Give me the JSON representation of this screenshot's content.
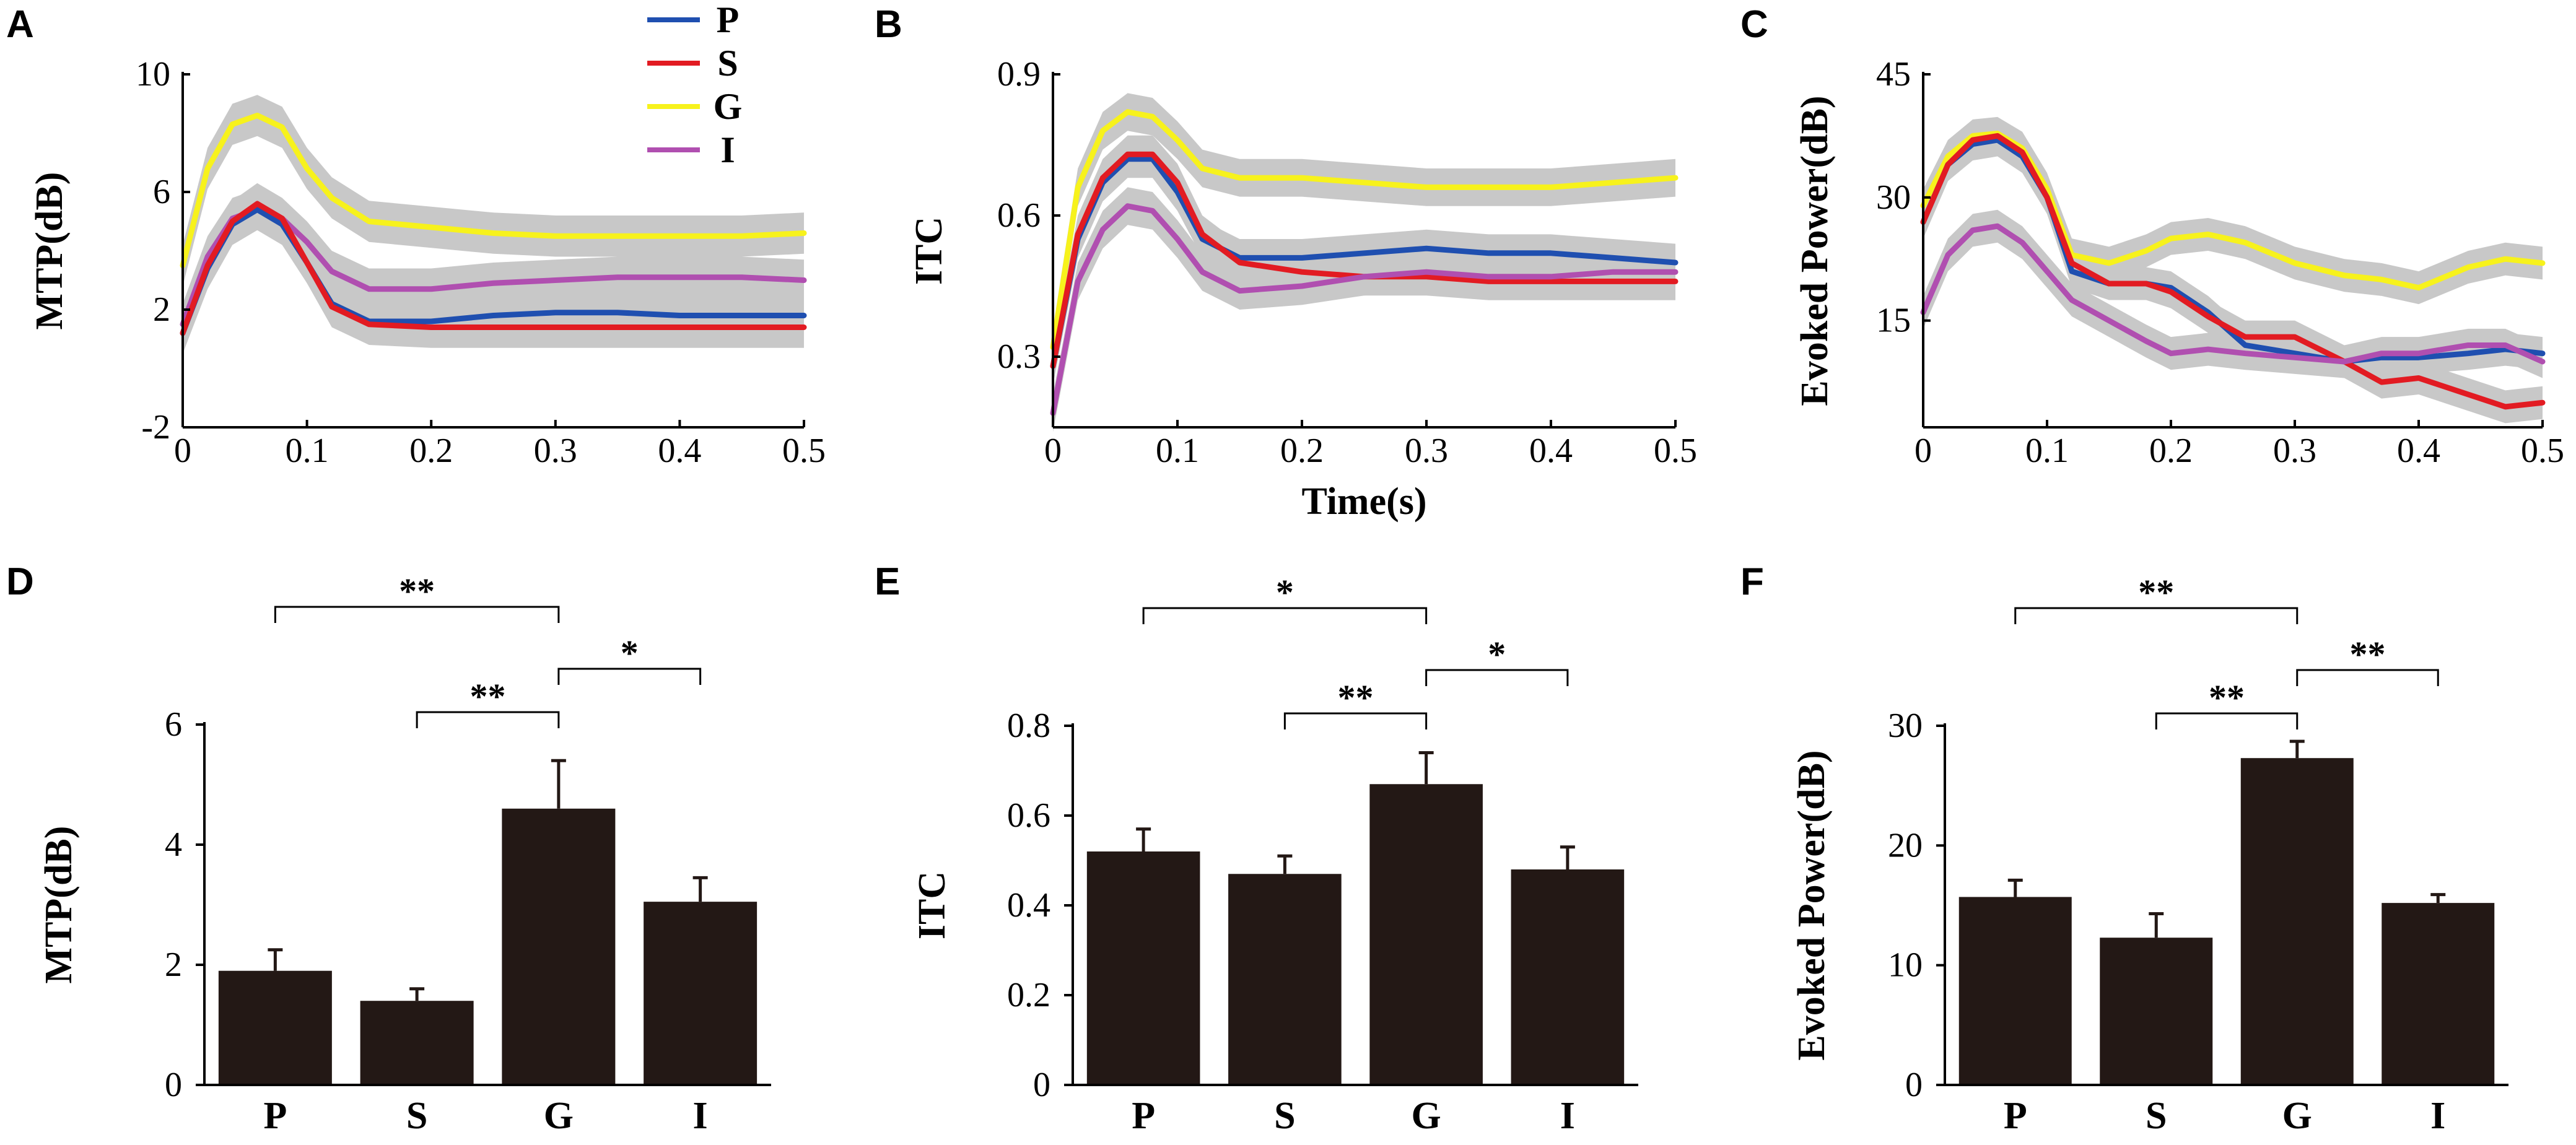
{
  "colors": {
    "P": "#1f4fb0",
    "S": "#e21b22",
    "G": "#f7f21c",
    "I": "#b04fb0",
    "band": "#c8c8c8",
    "bar": "#231815"
  },
  "legend": [
    {
      "key": "P",
      "label": "P"
    },
    {
      "key": "S",
      "label": "S"
    },
    {
      "key": "G",
      "label": "G"
    },
    {
      "key": "I",
      "label": "I"
    }
  ],
  "chart_data": [
    {
      "id": "A",
      "letter": "A",
      "type": "line",
      "ylabel": "MTP(dB)",
      "xlabel": "",
      "xlim": [
        0,
        0.5
      ],
      "ylim": [
        -2,
        10
      ],
      "xticks": [
        0,
        0.1,
        0.2,
        0.3,
        0.4,
        0.5
      ],
      "xtick_labels": [
        "0",
        "0.1",
        "0.2",
        "0.3",
        "0.4",
        "0.5"
      ],
      "yticks": [
        -2,
        2,
        6,
        10
      ],
      "ytick_labels": [
        "-2",
        "2",
        "6",
        "10"
      ],
      "band_halfwidth": 0.7,
      "series": [
        {
          "name": "G",
          "x": [
            0,
            0.02,
            0.04,
            0.06,
            0.08,
            0.1,
            0.12,
            0.15,
            0.2,
            0.25,
            0.3,
            0.35,
            0.4,
            0.45,
            0.5
          ],
          "values": [
            3.5,
            6.8,
            8.3,
            8.6,
            8.2,
            6.8,
            5.8,
            5.0,
            4.8,
            4.6,
            4.5,
            4.5,
            4.5,
            4.5,
            4.6
          ]
        },
        {
          "name": "I",
          "x": [
            0,
            0.02,
            0.04,
            0.06,
            0.08,
            0.1,
            0.12,
            0.15,
            0.2,
            0.25,
            0.3,
            0.35,
            0.4,
            0.45,
            0.5
          ],
          "values": [
            1.5,
            3.8,
            5.1,
            5.4,
            5.1,
            4.3,
            3.3,
            2.7,
            2.7,
            2.9,
            3.0,
            3.1,
            3.1,
            3.1,
            3.0
          ]
        },
        {
          "name": "P",
          "x": [
            0,
            0.02,
            0.04,
            0.06,
            0.08,
            0.1,
            0.12,
            0.15,
            0.2,
            0.25,
            0.3,
            0.35,
            0.4,
            0.45,
            0.5
          ],
          "values": [
            1.2,
            3.4,
            4.9,
            5.4,
            4.9,
            3.6,
            2.2,
            1.6,
            1.6,
            1.8,
            1.9,
            1.9,
            1.8,
            1.8,
            1.8
          ]
        },
        {
          "name": "S",
          "x": [
            0,
            0.02,
            0.04,
            0.06,
            0.08,
            0.1,
            0.12,
            0.15,
            0.2,
            0.25,
            0.3,
            0.35,
            0.4,
            0.45,
            0.5
          ],
          "values": [
            1.2,
            3.5,
            5.0,
            5.6,
            5.1,
            3.6,
            2.1,
            1.5,
            1.4,
            1.4,
            1.4,
            1.4,
            1.4,
            1.4,
            1.4
          ]
        }
      ]
    },
    {
      "id": "B",
      "letter": "B",
      "type": "line",
      "ylabel": "ITC",
      "xlabel": "Time(s)",
      "xlim": [
        0,
        0.5
      ],
      "ylim": [
        0.15,
        0.9
      ],
      "xticks": [
        0,
        0.1,
        0.2,
        0.3,
        0.4,
        0.5
      ],
      "xtick_labels": [
        "0",
        "0.1",
        "0.2",
        "0.3",
        "0.4",
        "0.5"
      ],
      "yticks": [
        0.3,
        0.6,
        0.9
      ],
      "ytick_labels": [
        "0.3",
        "0.6",
        "0.9"
      ],
      "band_halfwidth": 0.04,
      "series": [
        {
          "name": "G",
          "x": [
            0,
            0.02,
            0.04,
            0.06,
            0.08,
            0.1,
            0.12,
            0.15,
            0.2,
            0.25,
            0.3,
            0.35,
            0.4,
            0.45,
            0.5
          ],
          "values": [
            0.32,
            0.66,
            0.78,
            0.82,
            0.81,
            0.76,
            0.7,
            0.68,
            0.68,
            0.67,
            0.66,
            0.66,
            0.66,
            0.67,
            0.68
          ]
        },
        {
          "name": "P",
          "x": [
            0,
            0.02,
            0.04,
            0.06,
            0.08,
            0.1,
            0.12,
            0.15,
            0.2,
            0.25,
            0.3,
            0.35,
            0.4,
            0.45,
            0.5
          ],
          "values": [
            0.28,
            0.55,
            0.67,
            0.72,
            0.72,
            0.65,
            0.55,
            0.51,
            0.51,
            0.52,
            0.53,
            0.52,
            0.52,
            0.51,
            0.5
          ]
        },
        {
          "name": "S",
          "x": [
            0,
            0.02,
            0.04,
            0.06,
            0.08,
            0.1,
            0.12,
            0.15,
            0.2,
            0.25,
            0.3,
            0.35,
            0.4,
            0.45,
            0.5
          ],
          "values": [
            0.28,
            0.56,
            0.68,
            0.73,
            0.73,
            0.67,
            0.56,
            0.5,
            0.48,
            0.47,
            0.47,
            0.46,
            0.46,
            0.46,
            0.46
          ]
        },
        {
          "name": "I",
          "x": [
            0,
            0.02,
            0.04,
            0.06,
            0.08,
            0.1,
            0.12,
            0.15,
            0.2,
            0.25,
            0.3,
            0.35,
            0.4,
            0.45,
            0.5
          ],
          "values": [
            0.18,
            0.46,
            0.57,
            0.62,
            0.61,
            0.55,
            0.48,
            0.44,
            0.45,
            0.47,
            0.48,
            0.47,
            0.47,
            0.48,
            0.48
          ]
        }
      ]
    },
    {
      "id": "C",
      "letter": "C",
      "type": "line",
      "ylabel": "Evoked Power(dB)",
      "xlabel": "",
      "xlim": [
        0,
        0.5
      ],
      "ylim": [
        2,
        45
      ],
      "xticks": [
        0,
        0.1,
        0.2,
        0.3,
        0.4,
        0.5
      ],
      "xtick_labels": [
        "0",
        "0.1",
        "0.2",
        "0.3",
        "0.4",
        "0.5"
      ],
      "yticks": [
        15,
        30,
        45
      ],
      "ytick_labels": [
        "15",
        "30",
        "45"
      ],
      "band_halfwidth": 2.0,
      "series": [
        {
          "name": "G",
          "x": [
            0,
            0.02,
            0.04,
            0.06,
            0.08,
            0.1,
            0.12,
            0.15,
            0.18,
            0.2,
            0.23,
            0.26,
            0.3,
            0.34,
            0.37,
            0.4,
            0.44,
            0.47,
            0.5
          ],
          "values": [
            29,
            35,
            37.5,
            37.8,
            36,
            31,
            23,
            22,
            23.5,
            25,
            25.5,
            24.5,
            22,
            20.5,
            20,
            19,
            21.5,
            22.5,
            22
          ]
        },
        {
          "name": "P",
          "x": [
            0,
            0.02,
            0.04,
            0.06,
            0.08,
            0.1,
            0.12,
            0.15,
            0.18,
            0.2,
            0.23,
            0.26,
            0.3,
            0.34,
            0.37,
            0.4,
            0.44,
            0.47,
            0.5
          ],
          "values": [
            27,
            34,
            36.5,
            37,
            35,
            30,
            21,
            19.5,
            19.5,
            19,
            16,
            12,
            11,
            10,
            10.5,
            10.5,
            11,
            11.5,
            11
          ]
        },
        {
          "name": "S",
          "x": [
            0,
            0.02,
            0.04,
            0.06,
            0.08,
            0.1,
            0.12,
            0.15,
            0.18,
            0.2,
            0.23,
            0.26,
            0.3,
            0.34,
            0.37,
            0.4,
            0.44,
            0.47,
            0.5
          ],
          "values": [
            27,
            34,
            37,
            37.5,
            35.5,
            30,
            22,
            19.5,
            19.5,
            18.5,
            15.5,
            13,
            13,
            10,
            7.5,
            8,
            6,
            4.5,
            5
          ]
        },
        {
          "name": "I",
          "x": [
            0,
            0.02,
            0.04,
            0.06,
            0.08,
            0.1,
            0.12,
            0.15,
            0.18,
            0.2,
            0.23,
            0.26,
            0.3,
            0.34,
            0.37,
            0.4,
            0.44,
            0.47,
            0.5
          ],
          "values": [
            16,
            23,
            26,
            26.5,
            24.5,
            21,
            17.5,
            15,
            12.5,
            11,
            11.5,
            11,
            10.5,
            10,
            11,
            11,
            12,
            12,
            10
          ]
        }
      ]
    },
    {
      "id": "D",
      "letter": "D",
      "type": "bar",
      "ylabel": "MTP(dB)",
      "categories": [
        "P",
        "S",
        "G",
        "I"
      ],
      "values": [
        1.9,
        1.4,
        4.6,
        3.05
      ],
      "errors": [
        0.35,
        0.2,
        0.8,
        0.4
      ],
      "ylim": [
        0,
        6
      ],
      "yticks": [
        0,
        2,
        4,
        6
      ],
      "ytick_labels": [
        "0",
        "2",
        "4",
        "6"
      ],
      "significance": [
        {
          "from": 0,
          "to": 2,
          "level": 2,
          "label": "**"
        },
        {
          "from": 1,
          "to": 2,
          "level": 0,
          "label": "**"
        },
        {
          "from": 2,
          "to": 3,
          "level": 1,
          "label": "*"
        }
      ]
    },
    {
      "id": "E",
      "letter": "E",
      "type": "bar",
      "ylabel": "ITC",
      "categories": [
        "P",
        "S",
        "G",
        "I"
      ],
      "values": [
        0.52,
        0.47,
        0.67,
        0.48
      ],
      "errors": [
        0.05,
        0.04,
        0.07,
        0.05
      ],
      "ylim": [
        0,
        0.8
      ],
      "yticks": [
        0,
        0.2,
        0.4,
        0.6,
        0.8
      ],
      "ytick_labels": [
        "0",
        "0.2",
        "0.4",
        "0.6",
        "0.8"
      ],
      "significance": [
        {
          "from": 0,
          "to": 2,
          "level": 2,
          "label": "*"
        },
        {
          "from": 1,
          "to": 2,
          "level": 0,
          "label": "**"
        },
        {
          "from": 2,
          "to": 3,
          "level": 1,
          "label": "*"
        }
      ]
    },
    {
      "id": "F",
      "letter": "F",
      "type": "bar",
      "ylabel": "Evoked Power(dB)",
      "categories": [
        "P",
        "S",
        "G",
        "I"
      ],
      "values": [
        15.7,
        12.3,
        27.3,
        15.2
      ],
      "errors": [
        1.4,
        2.0,
        1.4,
        0.7
      ],
      "ylim": [
        0,
        30
      ],
      "yticks": [
        0,
        10,
        20,
        30
      ],
      "ytick_labels": [
        "0",
        "10",
        "20",
        "30"
      ],
      "significance": [
        {
          "from": 0,
          "to": 2,
          "level": 2,
          "label": "**"
        },
        {
          "from": 1,
          "to": 2,
          "level": 0,
          "label": "**"
        },
        {
          "from": 2,
          "to": 3,
          "level": 1,
          "label": "**"
        }
      ]
    }
  ]
}
